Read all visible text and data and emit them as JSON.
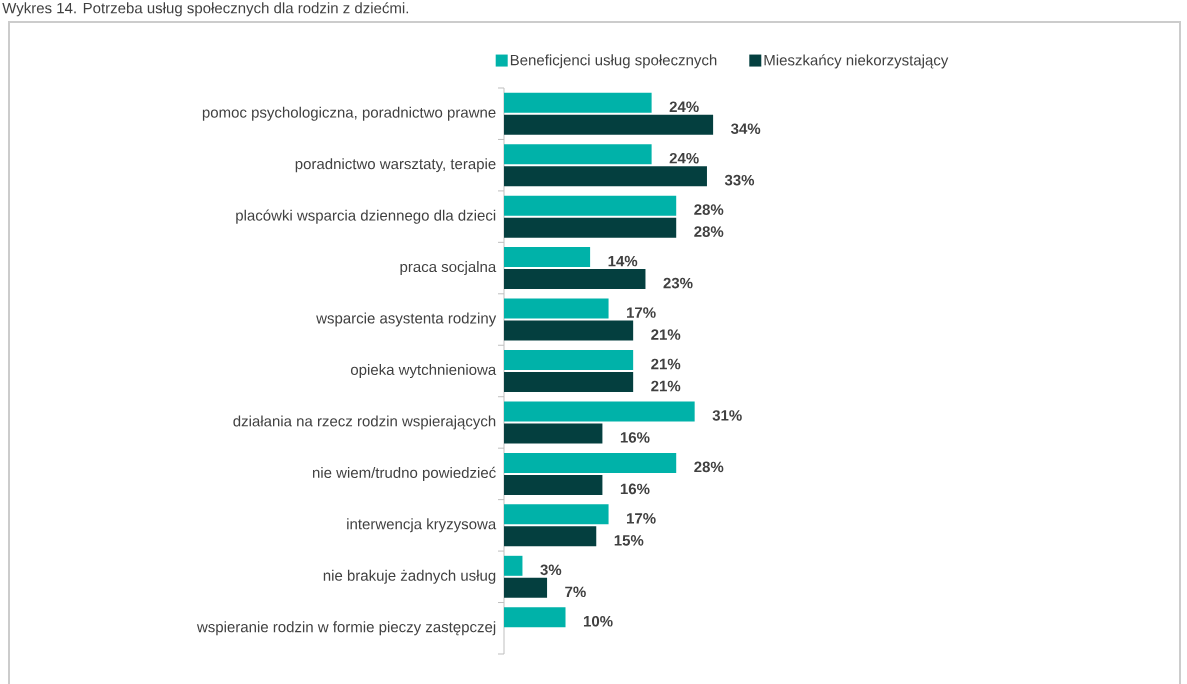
{
  "chart_data": {
    "type": "bar",
    "orientation": "horizontal",
    "title": "Wykres 14. Potrzeba usług społecznych dla rodzin z dziećmi.",
    "categories": [
      "pomoc psychologiczna, poradnictwo prawne",
      "poradnictwo warsztaty, terapie",
      "placówki wsparcia dziennego dla dzieci",
      "praca socjalna",
      "wsparcie asystenta rodziny",
      "opieka wytchnieniowa",
      "działania na rzecz rodzin wspierających",
      "nie wiem/trudno powiedzieć",
      "interwencja kryzysowa",
      "nie brakuje żadnych usług",
      "wspieranie rodzin w formie pieczy zastępczej"
    ],
    "series": [
      {
        "name": "Beneficjenci usług społecznych",
        "color": "#00b2a9",
        "values": [
          24,
          24,
          28,
          14,
          17,
          21,
          31,
          28,
          17,
          3,
          10
        ],
        "value_labels": [
          "24%",
          "24%",
          "28%",
          "14%",
          "17%",
          "21%",
          "31%",
          "28%",
          "17%",
          "3%",
          "10%"
        ]
      },
      {
        "name": "Mieszkańcy niekorzystający",
        "color": "#043f3f",
        "values": [
          34,
          33,
          28,
          23,
          21,
          21,
          16,
          16,
          15,
          7,
          null
        ],
        "value_labels": [
          "34%",
          "33%",
          "28%",
          "23%",
          "21%",
          "21%",
          "16%",
          "16%",
          "15%",
          "7%",
          null
        ]
      }
    ],
    "legend": "top"
  }
}
